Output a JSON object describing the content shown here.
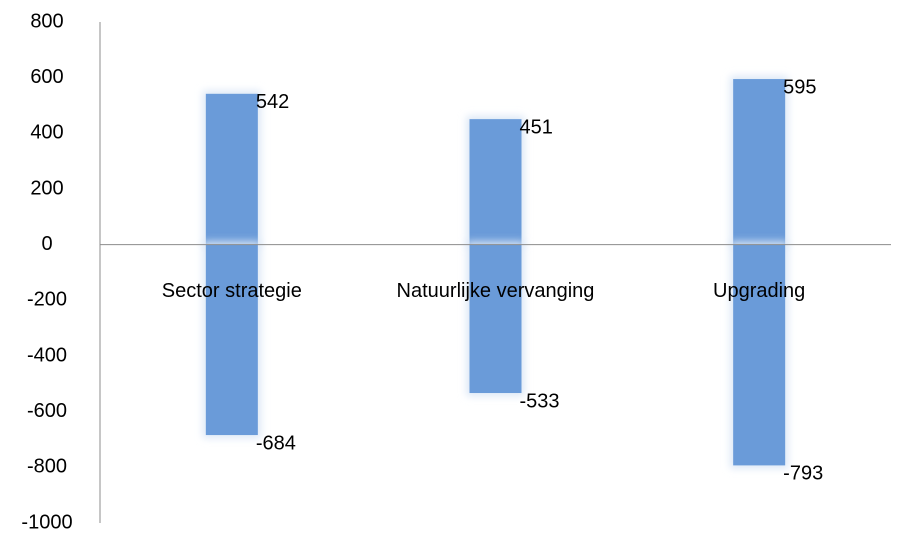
{
  "chart_data": {
    "type": "bar",
    "categories": [
      "Sector strategie",
      "Natuurlijke vervanging",
      "Upgrading"
    ],
    "series": [
      {
        "values": [
          542,
          451,
          595
        ]
      },
      {
        "values": [
          -684,
          -533,
          -793
        ]
      }
    ],
    "ylim": [
      -1000,
      800
    ],
    "yticks": [
      "800",
      "600",
      "400",
      "200",
      "0",
      "-200",
      "-400",
      "-600",
      "-800",
      "-1000"
    ],
    "data_labels": [
      [
        "542",
        "451",
        "595"
      ],
      [
        "-684",
        "-533",
        "-793"
      ]
    ],
    "grid": false,
    "legend": "none",
    "bar_color": "#6a9bd9",
    "glow_color": "#dbe7f6",
    "axis_color": "#8c8c8c"
  }
}
